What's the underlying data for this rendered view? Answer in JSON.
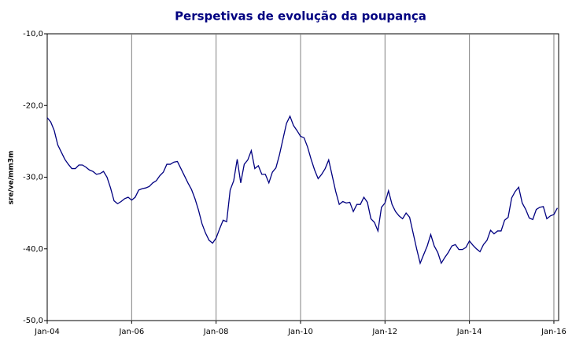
{
  "chart_data": {
    "type": "line",
    "title": "Perspetivas de evolução da poupança",
    "y_label": "sre/ve/mm3m",
    "categories": [
      "Jan-04",
      null,
      null,
      null,
      null,
      null,
      null,
      null,
      null,
      null,
      null,
      null,
      null,
      null,
      null,
      null,
      null,
      null,
      null,
      null,
      null,
      null,
      null,
      null,
      "Jan-06",
      null,
      null,
      null,
      null,
      null,
      null,
      null,
      null,
      null,
      null,
      null,
      null,
      null,
      null,
      null,
      null,
      null,
      null,
      null,
      null,
      null,
      null,
      null,
      "Jan-08",
      null,
      null,
      null,
      null,
      null,
      null,
      null,
      null,
      null,
      null,
      null,
      null,
      null,
      null,
      null,
      null,
      null,
      null,
      null,
      null,
      null,
      null,
      null,
      "Jan-10",
      null,
      null,
      null,
      null,
      null,
      null,
      null,
      null,
      null,
      null,
      null,
      null,
      null,
      null,
      null,
      null,
      null,
      null,
      null,
      null,
      null,
      null,
      null,
      "Jan-12",
      null,
      null,
      null,
      null,
      null,
      null,
      null,
      null,
      null,
      null,
      null,
      null,
      null,
      null,
      null,
      null,
      null,
      null,
      null,
      null,
      null,
      null,
      null,
      "Jan-14",
      null,
      null,
      null,
      null,
      null,
      null,
      null,
      null,
      null,
      null,
      null,
      null,
      null,
      null,
      null,
      null,
      null,
      null,
      null,
      null,
      null,
      null,
      null,
      "Jan-16",
      null
    ],
    "values": [
      -21.7,
      -22.3,
      -23.5,
      -25.5,
      -26.5,
      -27.5,
      -28.2,
      -28.8,
      -28.8,
      -28.3,
      -28.3,
      -28.6,
      -29.0,
      -29.2,
      -29.6,
      -29.5,
      -29.2,
      -30.0,
      -31.5,
      -33.3,
      -33.7,
      -33.4,
      -33.0,
      -32.8,
      -33.2,
      -32.8,
      -31.8,
      -31.6,
      -31.5,
      -31.3,
      -30.8,
      -30.5,
      -29.8,
      -29.3,
      -28.2,
      -28.2,
      -27.9,
      -27.8,
      -28.8,
      -29.8,
      -30.8,
      -31.7,
      -33.0,
      -34.6,
      -36.5,
      -37.8,
      -38.8,
      -39.2,
      -38.5,
      -37.2,
      -36.0,
      -36.2,
      -31.8,
      -30.5,
      -27.5,
      -30.8,
      -28.2,
      -27.6,
      -26.3,
      -28.8,
      -28.4,
      -29.6,
      -29.6,
      -30.8,
      -29.3,
      -28.7,
      -26.9,
      -24.7,
      -22.5,
      -21.5,
      -22.8,
      -23.5,
      -24.3,
      -24.5,
      -25.8,
      -27.5,
      -29.0,
      -30.2,
      -29.6,
      -28.8,
      -27.6,
      -29.8,
      -32.0,
      -33.8,
      -33.4,
      -33.6,
      -33.5,
      -34.8,
      -33.8,
      -33.8,
      -32.8,
      -33.5,
      -35.8,
      -36.3,
      -37.5,
      -34.2,
      -33.6,
      -31.9,
      -33.8,
      -34.8,
      -35.4,
      -35.8,
      -35.0,
      -35.6,
      -37.8,
      -40.0,
      -42.0,
      -40.8,
      -39.6,
      -38.0,
      -39.6,
      -40.5,
      -42.0,
      -41.2,
      -40.5,
      -39.6,
      -39.4,
      -40.1,
      -40.1,
      -39.8,
      -38.9,
      -39.5,
      -40.0,
      -40.4,
      -39.4,
      -38.8,
      -37.4,
      -37.9,
      -37.5,
      -37.5,
      -36.0,
      -35.6,
      -32.9,
      -32.0,
      -31.4,
      -33.6,
      -34.5,
      -35.7,
      -35.9,
      -34.5,
      -34.2,
      -34.1,
      -35.8,
      -35.4,
      -35.2,
      -34.3
    ],
    "color": "#000080",
    "ylim": [
      -50,
      -10
    ],
    "yticks": [
      {
        "value": -50,
        "label": "-50,0"
      },
      {
        "value": -40,
        "label": "-40,0"
      },
      {
        "value": -30,
        "label": "-30,0"
      },
      {
        "value": -20,
        "label": "-20,0"
      },
      {
        "value": -10,
        "label": "-10,0"
      }
    ],
    "grid": true
  }
}
